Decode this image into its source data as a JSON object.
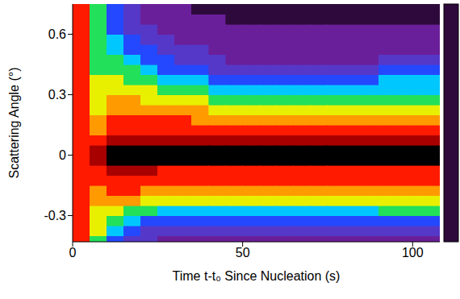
{
  "chart_data": {
    "type": "heatmap",
    "x_label": "Time t-t₀ Since Nucleation (s)",
    "y_label": "Scattering Angle (°)",
    "xlim": [
      0,
      108
    ],
    "xticks": [
      0,
      50,
      100
    ],
    "ylim": [
      -0.43,
      0.75
    ],
    "yticks": [
      -0.3,
      0,
      0.3,
      0.6
    ],
    "x_bins": [
      0,
      5,
      10,
      15,
      20,
      25,
      30,
      35,
      40,
      45,
      50,
      55,
      60,
      65,
      70,
      75,
      80,
      85,
      90,
      95,
      100,
      105,
      110
    ],
    "y_bins": [
      -0.45,
      -0.4,
      -0.35,
      -0.3,
      -0.25,
      -0.2,
      -0.15,
      -0.1,
      -0.05,
      0,
      0.05,
      0.1,
      0.15,
      0.2,
      0.25,
      0.3,
      0.35,
      0.4,
      0.45,
      0.5,
      0.55,
      0.6,
      0.65,
      0.7,
      0.75
    ],
    "cells": [
      [
        8,
        8,
        8,
        8,
        8,
        8,
        8,
        8,
        8,
        8,
        8,
        8,
        8,
        8,
        8,
        8,
        8,
        8,
        8,
        8,
        8,
        8,
        8,
        8
      ],
      [
        5,
        6,
        6,
        6,
        7,
        7,
        8,
        8,
        9,
        9,
        8,
        7,
        7,
        6,
        6,
        6,
        6,
        5,
        5,
        5,
        5,
        5,
        5,
        5
      ],
      [
        3,
        4,
        5,
        6,
        7,
        8,
        8,
        9,
        10,
        10,
        9,
        8,
        8,
        7,
        7,
        6,
        6,
        5,
        5,
        4,
        4,
        3,
        3,
        3
      ],
      [
        2,
        3,
        4,
        5,
        7,
        8,
        8,
        9,
        10,
        10,
        9,
        8,
        8,
        7,
        7,
        6,
        5,
        5,
        4,
        3,
        3,
        2,
        2,
        2
      ],
      [
        2,
        2,
        3,
        5,
        6,
        7,
        8,
        9,
        10,
        10,
        9,
        8,
        8,
        7,
        6,
        6,
        5,
        4,
        3,
        3,
        2,
        2,
        1,
        1
      ],
      [
        1,
        2,
        3,
        4,
        6,
        7,
        8,
        8,
        10,
        10,
        9,
        8,
        8,
        7,
        6,
        5,
        4,
        3,
        3,
        2,
        2,
        1,
        1,
        1
      ],
      [
        1,
        2,
        3,
        4,
        6,
        7,
        8,
        8,
        10,
        10,
        9,
        8,
        8,
        7,
        6,
        5,
        4,
        3,
        2,
        2,
        1,
        1,
        1,
        1
      ],
      [
        1,
        2,
        3,
        4,
        6,
        7,
        8,
        8,
        10,
        10,
        9,
        8,
        7,
        7,
        6,
        5,
        4,
        3,
        2,
        2,
        1,
        1,
        1,
        0
      ],
      [
        1,
        2,
        3,
        4,
        6,
        7,
        8,
        8,
        10,
        10,
        9,
        8,
        7,
        6,
        5,
        4,
        3,
        2,
        2,
        1,
        1,
        1,
        1,
        0
      ],
      [
        1,
        2,
        3,
        4,
        6,
        7,
        8,
        8,
        10,
        10,
        9,
        8,
        7,
        6,
        5,
        4,
        3,
        2,
        1,
        1,
        1,
        1,
        0,
        0
      ],
      [
        1,
        2,
        3,
        4,
        6,
        7,
        8,
        8,
        10,
        10,
        9,
        8,
        7,
        6,
        5,
        4,
        3,
        2,
        1,
        1,
        1,
        1,
        0,
        0
      ],
      [
        1,
        2,
        3,
        4,
        6,
        7,
        8,
        8,
        10,
        10,
        9,
        8,
        7,
        6,
        5,
        4,
        3,
        2,
        1,
        1,
        1,
        1,
        0,
        0
      ],
      [
        1,
        2,
        3,
        4,
        6,
        7,
        8,
        8,
        10,
        10,
        9,
        8,
        7,
        6,
        5,
        4,
        3,
        2,
        1,
        1,
        1,
        1,
        0,
        0
      ],
      [
        1,
        2,
        3,
        4,
        6,
        7,
        8,
        8,
        10,
        10,
        9,
        8,
        7,
        6,
        5,
        4,
        3,
        2,
        1,
        1,
        1,
        1,
        0,
        0
      ],
      [
        1,
        2,
        3,
        4,
        6,
        7,
        8,
        8,
        10,
        10,
        9,
        8,
        7,
        6,
        5,
        4,
        3,
        2,
        1,
        1,
        1,
        1,
        0,
        0
      ],
      [
        1,
        2,
        3,
        4,
        6,
        7,
        8,
        8,
        10,
        10,
        9,
        8,
        7,
        6,
        5,
        4,
        3,
        2,
        1,
        1,
        1,
        1,
        0,
        0
      ],
      [
        1,
        2,
        3,
        4,
        6,
        7,
        8,
        8,
        10,
        10,
        9,
        8,
        7,
        6,
        5,
        4,
        3,
        2,
        1,
        1,
        1,
        1,
        0,
        0
      ],
      [
        1,
        2,
        3,
        4,
        6,
        7,
        8,
        8,
        10,
        10,
        9,
        8,
        7,
        6,
        5,
        4,
        3,
        2,
        1,
        1,
        1,
        1,
        0,
        0
      ],
      [
        1,
        2,
        3,
        5,
        6,
        7,
        8,
        8,
        10,
        10,
        9,
        8,
        7,
        6,
        5,
        4,
        4,
        3,
        2,
        1,
        1,
        1,
        0,
        0
      ],
      [
        1,
        2,
        3,
        5,
        6,
        7,
        8,
        8,
        10,
        10,
        9,
        8,
        7,
        6,
        5,
        4,
        4,
        3,
        2,
        1,
        1,
        1,
        0,
        0
      ],
      [
        1,
        2,
        3,
        5,
        6,
        7,
        8,
        8,
        10,
        10,
        9,
        8,
        7,
        6,
        5,
        4,
        4,
        3,
        2,
        1,
        1,
        1,
        0,
        0
      ],
      [
        1,
        2,
        3,
        5,
        6,
        7,
        8,
        8,
        10,
        10,
        9,
        8,
        7,
        6,
        5,
        4,
        4,
        3,
        2,
        1,
        1,
        1,
        0,
        0
      ]
    ],
    "colorbar_range": [
      0,
      10
    ]
  }
}
